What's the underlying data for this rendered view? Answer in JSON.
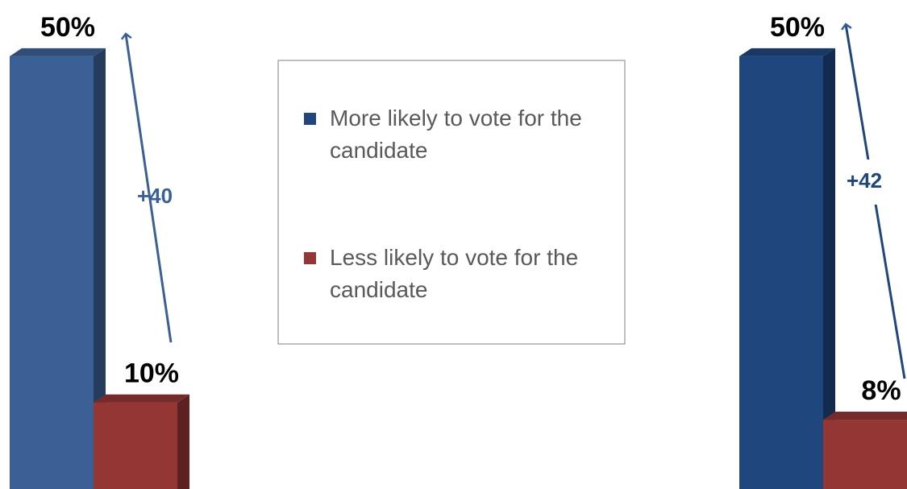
{
  "chart_data": {
    "type": "bar3d",
    "categories": [
      null,
      null
    ],
    "series": [
      {
        "name": "More likely to vote for the candidate",
        "color": "#1f467d",
        "colors": [
          "#3b6095",
          "#1f467d"
        ],
        "values": [
          50,
          50
        ],
        "value_labels": [
          "50%",
          "50%"
        ]
      },
      {
        "name": "Less likely to vote for the candidate",
        "color": "#943634",
        "colors": [
          "#943634",
          "#943634"
        ],
        "values": [
          10,
          8
        ],
        "value_labels": [
          "10%",
          "8%"
        ]
      }
    ],
    "ylim": [
      0,
      56.5
    ],
    "annotations": [
      "+40",
      "+42"
    ]
  }
}
